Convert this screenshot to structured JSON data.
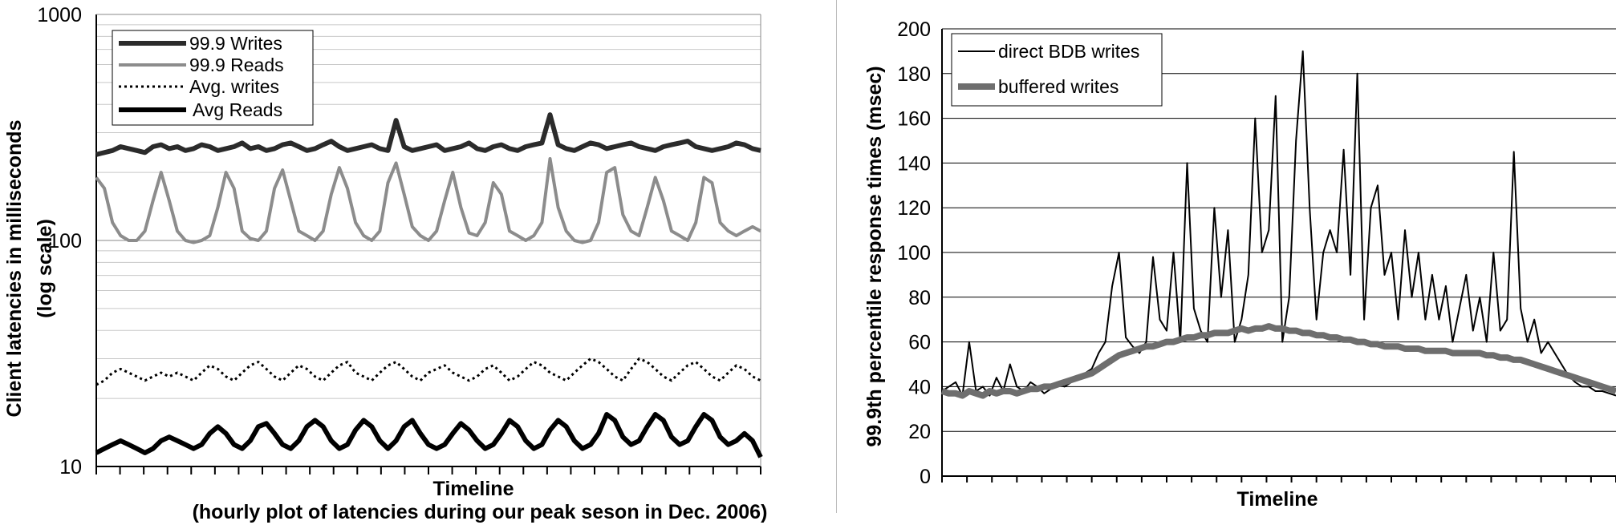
{
  "chart_data": [
    {
      "type": "line",
      "title": "",
      "xlabel": "Timeline",
      "xlabel_note": "(hourly plot of latencies during our peak seson in Dec. 2006)",
      "ylabel": "Client latencies in milliseconds",
      "ylabel_note": "(log scale)",
      "yscale": "log",
      "ylim": [
        10,
        1000
      ],
      "yticks": [
        "10",
        "100",
        "1000"
      ],
      "grid": true,
      "legend_position": "top-left",
      "series": [
        {
          "name": "99.9 Writes",
          "color": "#2b2b2b",
          "values": [
            240,
            245,
            250,
            260,
            255,
            250,
            245,
            260,
            265,
            255,
            260,
            250,
            255,
            265,
            260,
            250,
            255,
            260,
            270,
            255,
            260,
            250,
            255,
            265,
            270,
            260,
            250,
            255,
            265,
            275,
            260,
            250,
            255,
            260,
            265,
            255,
            250,
            340,
            260,
            250,
            255,
            260,
            265,
            250,
            255,
            260,
            270,
            255,
            250,
            260,
            265,
            255,
            250,
            260,
            265,
            270,
            360,
            265,
            255,
            250,
            260,
            270,
            265,
            255,
            260,
            265,
            270,
            260,
            255,
            250,
            260,
            265,
            270,
            275,
            260,
            255,
            250,
            255,
            260,
            270,
            265,
            255,
            250
          ]
        },
        {
          "name": "99.9 Reads",
          "color": "#8c8c8c",
          "values": [
            190,
            170,
            120,
            105,
            100,
            100,
            110,
            150,
            200,
            150,
            110,
            100,
            98,
            100,
            105,
            140,
            200,
            170,
            110,
            102,
            100,
            110,
            170,
            205,
            150,
            110,
            105,
            100,
            110,
            160,
            210,
            170,
            120,
            105,
            100,
            110,
            180,
            220,
            160,
            115,
            105,
            100,
            110,
            150,
            200,
            140,
            108,
            105,
            120,
            180,
            160,
            110,
            105,
            100,
            105,
            120,
            230,
            140,
            110,
            100,
            98,
            100,
            120,
            200,
            210,
            130,
            110,
            105,
            140,
            190,
            150,
            110,
            105,
            100,
            120,
            190,
            180,
            120,
            110,
            105,
            110,
            115,
            110
          ]
        },
        {
          "name": "Avg. writes",
          "color": "#000000",
          "values": [
            23,
            24,
            26,
            27,
            26,
            25,
            24,
            25,
            26,
            25,
            26,
            25,
            24,
            26,
            28,
            27,
            25,
            24,
            26,
            28,
            29,
            27,
            25,
            24,
            26,
            28,
            27,
            25,
            24,
            26,
            28,
            29,
            26,
            25,
            24,
            26,
            28,
            29,
            27,
            25,
            24,
            26,
            27,
            28,
            26,
            25,
            24,
            25,
            27,
            28,
            26,
            24,
            25,
            27,
            29,
            28,
            26,
            25,
            24,
            26,
            28,
            30,
            29,
            27,
            25,
            24,
            27,
            30,
            29,
            27,
            25,
            24,
            26,
            28,
            29,
            27,
            25,
            24,
            26,
            28,
            27,
            25,
            24
          ]
        },
        {
          "name": "Avg Reads",
          "color": "#000000",
          "values": [
            11.5,
            12,
            12.5,
            13,
            12.5,
            12,
            11.5,
            12,
            13,
            13.5,
            13,
            12.5,
            12,
            12.5,
            14,
            15,
            14,
            12.5,
            12,
            13,
            15,
            15.5,
            14,
            12.5,
            12,
            13,
            15,
            16,
            15,
            13,
            12,
            12.5,
            14.5,
            16,
            15,
            13,
            12,
            13,
            15,
            16,
            14,
            12.5,
            12,
            12.5,
            14,
            15.5,
            14.5,
            13,
            12,
            12.5,
            14,
            16,
            15,
            13,
            12,
            12.5,
            14.5,
            16,
            15,
            13,
            12,
            12.5,
            14,
            17,
            16,
            13.5,
            12.5,
            13,
            15,
            17,
            16,
            13.5,
            12.5,
            13,
            15,
            17,
            16,
            13.5,
            12.5,
            13,
            14,
            13,
            11
          ]
        }
      ]
    },
    {
      "type": "line",
      "title": "",
      "xlabel": "Timeline",
      "ylabel": "99.9th percentile response times (msec)",
      "ylim": [
        0,
        200
      ],
      "yticks": [
        "0",
        "20",
        "40",
        "60",
        "80",
        "100",
        "120",
        "140",
        "160",
        "180",
        "200"
      ],
      "grid": true,
      "legend_position": "top-left",
      "series": [
        {
          "name": "direct BDB writes",
          "color": "#000000",
          "values": [
            38,
            40,
            42,
            36,
            60,
            38,
            40,
            36,
            44,
            38,
            50,
            40,
            38,
            42,
            40,
            37,
            39,
            41,
            40,
            42,
            44,
            46,
            48,
            55,
            60,
            85,
            100,
            62,
            58,
            55,
            60,
            98,
            70,
            65,
            100,
            60,
            140,
            75,
            65,
            60,
            120,
            80,
            110,
            60,
            70,
            90,
            160,
            100,
            110,
            170,
            60,
            80,
            150,
            190,
            120,
            70,
            100,
            110,
            100,
            146,
            90,
            180,
            70,
            120,
            130,
            90,
            100,
            70,
            110,
            80,
            100,
            70,
            90,
            70,
            85,
            60,
            75,
            90,
            65,
            80,
            60,
            100,
            65,
            70,
            145,
            75,
            60,
            70,
            55,
            60,
            55,
            50,
            45,
            42,
            40,
            40,
            38,
            38,
            37,
            36
          ]
        },
        {
          "name": "buffered writes",
          "color": "#6e6e6e",
          "values": [
            38,
            37,
            37,
            36,
            38,
            37,
            36,
            38,
            37,
            38,
            38,
            37,
            38,
            39,
            39,
            40,
            40,
            41,
            42,
            43,
            44,
            45,
            46,
            48,
            50,
            52,
            54,
            55,
            56,
            57,
            58,
            58,
            59,
            60,
            60,
            61,
            62,
            62,
            63,
            63,
            64,
            64,
            64,
            65,
            66,
            65,
            66,
            66,
            67,
            66,
            66,
            65,
            65,
            64,
            64,
            63,
            63,
            62,
            62,
            61,
            61,
            60,
            60,
            59,
            59,
            58,
            58,
            58,
            57,
            57,
            57,
            56,
            56,
            56,
            56,
            55,
            55,
            55,
            55,
            55,
            54,
            54,
            53,
            53,
            52,
            52,
            51,
            50,
            49,
            48,
            47,
            46,
            45,
            44,
            43,
            42,
            41,
            40,
            39,
            38
          ]
        }
      ]
    }
  ]
}
